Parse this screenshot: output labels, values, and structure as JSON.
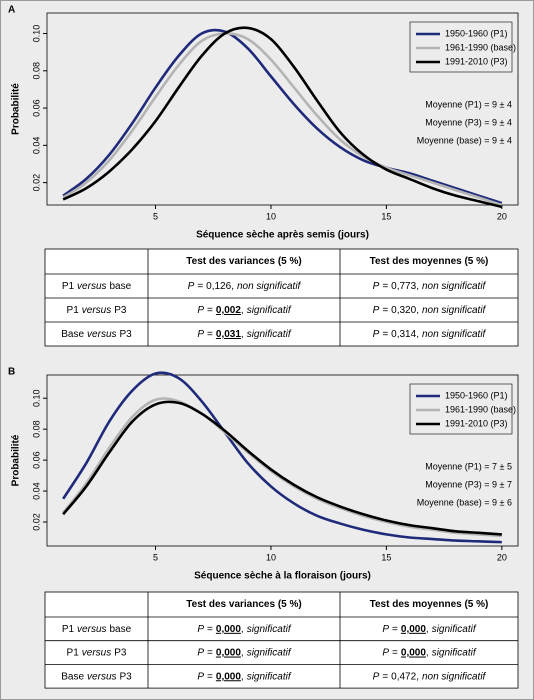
{
  "chart_data": [
    {
      "type": "line",
      "panel": "A",
      "xlabel": "Séquence sèche après semis (jours)",
      "ylabel": "Probabilité",
      "x": [
        1,
        2,
        3,
        4,
        5,
        6,
        7,
        8,
        9,
        10,
        11,
        12,
        13,
        14,
        15,
        16,
        17,
        18,
        19,
        20
      ],
      "series": [
        {
          "name": "1950-1960 (P1)",
          "color": "#1f2a7a",
          "values": [
            0.013,
            0.022,
            0.035,
            0.052,
            0.071,
            0.088,
            0.1,
            0.101,
            0.092,
            0.077,
            0.062,
            0.049,
            0.039,
            0.032,
            0.028,
            0.025,
            0.021,
            0.017,
            0.013,
            0.009
          ]
        },
        {
          "name": "1961-1990 (base)",
          "color": "#b4b4b4",
          "values": [
            0.012,
            0.02,
            0.032,
            0.048,
            0.066,
            0.083,
            0.096,
            0.1,
            0.097,
            0.086,
            0.071,
            0.056,
            0.043,
            0.034,
            0.028,
            0.024,
            0.02,
            0.016,
            0.012,
            0.008
          ]
        },
        {
          "name": "1991-2010 (P3)",
          "color": "#000000",
          "values": [
            0.011,
            0.017,
            0.026,
            0.038,
            0.053,
            0.071,
            0.088,
            0.1,
            0.103,
            0.097,
            0.082,
            0.064,
            0.047,
            0.035,
            0.027,
            0.022,
            0.017,
            0.013,
            0.01,
            0.007
          ]
        }
      ],
      "xlim": [
        0.3,
        20.7
      ],
      "ylim": [
        0.008,
        0.111
      ],
      "xticks": [
        5,
        10,
        15,
        20
      ],
      "yticks": [
        0.02,
        0.04,
        0.06,
        0.08,
        {
          "value": 0.1,
          "label": "0.10"
        }
      ],
      "legend": "top-right",
      "annotations": [
        "Moyenne (P1) = 9 ± 4",
        "Moyenne (P3) = 9 ± 4",
        "Moyenne (base) = 9 ± 4"
      ]
    },
    {
      "type": "line",
      "panel": "B",
      "xlabel": "Séquence sèche à la floraison (jours)",
      "ylabel": "Probabilité",
      "x": [
        1,
        2,
        3,
        4,
        5,
        6,
        7,
        8,
        9,
        10,
        11,
        12,
        13,
        14,
        15,
        16,
        17,
        18,
        19,
        20
      ],
      "series": [
        {
          "name": "1950-1960 (P1)",
          "color": "#1f2a7a",
          "values": [
            0.035,
            0.058,
            0.085,
            0.105,
            0.116,
            0.113,
            0.098,
            0.078,
            0.058,
            0.043,
            0.032,
            0.024,
            0.019,
            0.015,
            0.012,
            0.01,
            0.009,
            0.008,
            0.0075,
            0.007
          ]
        },
        {
          "name": "1961-1990 (base)",
          "color": "#b4b4b4",
          "values": [
            0.026,
            0.045,
            0.068,
            0.088,
            0.099,
            0.098,
            0.09,
            0.078,
            0.065,
            0.053,
            0.043,
            0.035,
            0.029,
            0.024,
            0.02,
            0.017,
            0.015,
            0.013,
            0.012,
            0.011
          ]
        },
        {
          "name": "1991-2010 (P3)",
          "color": "#000000",
          "values": [
            0.025,
            0.043,
            0.065,
            0.085,
            0.096,
            0.097,
            0.09,
            0.079,
            0.066,
            0.054,
            0.044,
            0.036,
            0.03,
            0.025,
            0.021,
            0.018,
            0.016,
            0.014,
            0.013,
            0.012
          ]
        }
      ],
      "xlim": [
        0.3,
        20.7
      ],
      "ylim": [
        0.0045,
        0.115
      ],
      "xticks": [
        5,
        10,
        15,
        20
      ],
      "yticks": [
        0.02,
        0.04,
        0.06,
        0.08,
        {
          "value": 0.1,
          "label": "0.10"
        }
      ],
      "legend": "top-right",
      "annotations": [
        "Moyenne (P1) = 7 ± 5",
        "Moyenne (P3) = 9 ± 7",
        "Moyenne (base) = 9 ± 6"
      ]
    }
  ],
  "tables": [
    {
      "header": [
        "Test des variances (5 %)",
        "Test des moyennes (5 %)"
      ],
      "rows": [
        {
          "label": {
            "a": "P1",
            "versus": "versus",
            "b": "base"
          },
          "cells": [
            {
              "p": "P",
              "op": "=",
              "value": "0,126",
              "sep": ",",
              "verdict": "non significatif",
              "significant": false
            },
            {
              "p": "P",
              "op": "=",
              "value": "0,773",
              "sep": ",",
              "verdict": "non significatif",
              "significant": false
            }
          ]
        },
        {
          "label": {
            "a": "P1",
            "versus": "versus",
            "b": "P3"
          },
          "cells": [
            {
              "p": "P",
              "op": "=",
              "value": "0,002",
              "sep": ",",
              "verdict": "significatif",
              "significant": true
            },
            {
              "p": "P",
              "op": "=",
              "value": "0,320",
              "sep": ",",
              "verdict": "non significatif",
              "significant": false
            }
          ]
        },
        {
          "label": {
            "a": "Base",
            "versus": "versus",
            "b": "P3"
          },
          "cells": [
            {
              "p": "P",
              "op": "=",
              "value": "0,031",
              "sep": ",",
              "verdict": "significatif",
              "significant": true
            },
            {
              "p": "P",
              "op": "=",
              "value": "0,314",
              "sep": ",",
              "verdict": "non significatif",
              "significant": false
            }
          ]
        }
      ]
    },
    {
      "header": [
        "Test des variances (5 %)",
        "Test des moyennes (5 %)"
      ],
      "rows": [
        {
          "label": {
            "a": "P1",
            "versus": "versus",
            "b": "base"
          },
          "cells": [
            {
              "p": "P",
              "op": "=",
              "value": "0,000",
              "sep": ",",
              "verdict": "significatif",
              "significant": true
            },
            {
              "p": "P",
              "op": "=",
              "value": "0,000",
              "sep": ",",
              "verdict": "significatif",
              "significant": true
            }
          ]
        },
        {
          "label": {
            "a": "P1",
            "versus": "versus",
            "b": "P3"
          },
          "cells": [
            {
              "p": "P",
              "op": "=",
              "value": "0,000",
              "sep": ",",
              "verdict": "significatif",
              "significant": true
            },
            {
              "p": "P",
              "op": "=",
              "value": "0,000",
              "sep": ",",
              "verdict": "significatif",
              "significant": true
            }
          ]
        },
        {
          "label": {
            "a": "Base",
            "versus": "versus",
            "b": "P3"
          },
          "cells": [
            {
              "p": "P",
              "op": "=",
              "value": "0,000",
              "sep": ",",
              "verdict": "significatif",
              "significant": true
            },
            {
              "p": "P",
              "op": "=",
              "value": "0,472",
              "sep": ",",
              "verdict": "non significatif",
              "significant": false
            }
          ]
        }
      ]
    }
  ]
}
